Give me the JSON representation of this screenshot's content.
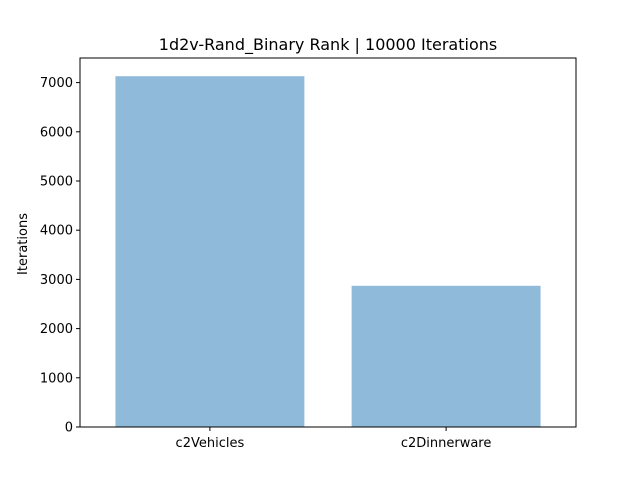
{
  "chart_data": {
    "type": "bar",
    "title": "1d2v-Rand_Binary Rank | 10000 Iterations",
    "xlabel": "",
    "ylabel": "Iterations",
    "categories": [
      "c2Vehicles",
      "c2Dinnerware"
    ],
    "values": [
      7130,
      2870
    ],
    "ylim": [
      0,
      7500
    ],
    "yticks": [
      0,
      1000,
      2000,
      3000,
      4000,
      5000,
      6000,
      7000
    ],
    "bar_color": "#8fbad9",
    "grid": false,
    "legend": "none"
  }
}
